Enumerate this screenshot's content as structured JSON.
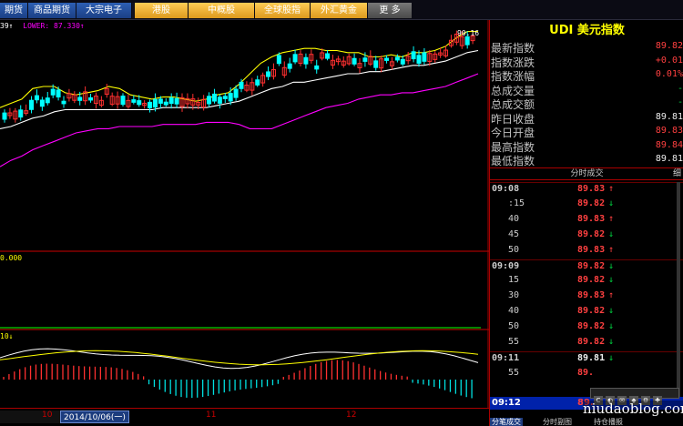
{
  "topbar": {
    "tabs": [
      {
        "label": "期货",
        "style": "blue"
      },
      {
        "label": "商品期货",
        "style": "blue"
      },
      {
        "label": "大宗电子",
        "style": "blue"
      },
      {
        "label": "港股",
        "style": "gold"
      },
      {
        "label": "中概股",
        "style": "gold"
      },
      {
        "label": "全球股指",
        "style": "gold"
      },
      {
        "label": "外汇黄金",
        "style": "gold"
      },
      {
        "label": "更 多",
        "style": "grey"
      }
    ]
  },
  "chart": {
    "ma_legend": {
      "mid": "39↑",
      "lower": "LOWER: 87.330↑"
    },
    "peak_label": "90.16",
    "volume_label": "0.000",
    "macd_label": "10↓",
    "time_ticks": [
      "10",
      "11",
      "12"
    ],
    "date_box": "2014/10/06(一)",
    "colors": {
      "up": "#ff3030",
      "down": "#00ffff",
      "upper_band": "#ffff00",
      "mid_band": "#ffffff",
      "lower_band": "#ff00ff",
      "grid": "#8b0000"
    }
  },
  "chart_data": {
    "type": "line",
    "title": "",
    "xlabel": "",
    "ylabel": "",
    "note": "Candlestick with Bollinger bands (upper yellow, mid white, lower magenta)",
    "series": [
      {
        "values": [
          0.62,
          0.64,
          0.66,
          0.71,
          0.72,
          0.72,
          0.69,
          0.68,
          0.69,
          0.7,
          0.72,
          0.71,
          0.68,
          0.67,
          0.66,
          0.67,
          0.67,
          0.66,
          0.65,
          0.66,
          0.68,
          0.69,
          0.73,
          0.78,
          0.83,
          0.86,
          0.88,
          0.89,
          0.9,
          0.9,
          0.89,
          0.89,
          0.88,
          0.88,
          0.86,
          0.86,
          0.87,
          0.86,
          0.88,
          0.88,
          0.89,
          0.91,
          0.95,
          0.98,
          0.98
        ]
      },
      {
        "values": [
          0.52,
          0.53,
          0.55,
          0.57,
          0.58,
          0.6,
          0.61,
          0.61,
          0.61,
          0.61,
          0.61,
          0.61,
          0.61,
          0.61,
          0.61,
          0.62,
          0.62,
          0.62,
          0.62,
          0.62,
          0.63,
          0.64,
          0.65,
          0.67,
          0.69,
          0.71,
          0.72,
          0.74,
          0.74,
          0.75,
          0.76,
          0.77,
          0.78,
          0.78,
          0.79,
          0.79,
          0.8,
          0.81,
          0.82,
          0.82,
          0.83,
          0.84,
          0.86,
          0.88,
          0.89
        ]
      },
      {
        "values": [
          0.34,
          0.37,
          0.39,
          0.42,
          0.44,
          0.46,
          0.48,
          0.5,
          0.51,
          0.52,
          0.52,
          0.53,
          0.53,
          0.53,
          0.53,
          0.54,
          0.54,
          0.54,
          0.54,
          0.55,
          0.55,
          0.55,
          0.54,
          0.52,
          0.52,
          0.52,
          0.54,
          0.56,
          0.58,
          0.6,
          0.62,
          0.63,
          0.64,
          0.66,
          0.67,
          0.68,
          0.68,
          0.69,
          0.69,
          0.7,
          0.71,
          0.72,
          0.74,
          0.76,
          0.78
        ]
      }
    ]
  },
  "quote": {
    "title": "UDI 美元指数",
    "stats": [
      {
        "label": "最新指数",
        "value": "89.82",
        "color": "red"
      },
      {
        "label": "指数涨跌",
        "value": "+0.01",
        "color": "red"
      },
      {
        "label": "指数涨幅",
        "value": "0.01%",
        "color": "red"
      },
      {
        "label": "总成交量",
        "value": "-",
        "color": "green"
      },
      {
        "label": "总成交额",
        "value": "-",
        "color": "green"
      },
      {
        "label": "昨日收盘",
        "value": "89.81",
        "color": "white"
      },
      {
        "label": "今日开盘",
        "value": "89.83",
        "color": "red"
      },
      {
        "label": "最高指数",
        "value": "89.84",
        "color": "red"
      },
      {
        "label": "最低指数",
        "value": "89.81",
        "color": "white"
      }
    ],
    "trades_header": "分时成交",
    "trades_header_right": "细",
    "trades": [
      {
        "time": "09:08",
        "price": "89.83",
        "dir": "↑",
        "major": true
      },
      {
        "time": ":15",
        "price": "89.82",
        "dir": "↓",
        "major": false
      },
      {
        "time": "40",
        "price": "89.83",
        "dir": "↑",
        "major": false
      },
      {
        "time": "45",
        "price": "89.82",
        "dir": "↓",
        "major": false
      },
      {
        "time": "50",
        "price": "89.83",
        "dir": "↑",
        "major": false
      },
      {
        "time": "09:09",
        "price": "89.82",
        "dir": "↓",
        "major": true
      },
      {
        "time": "15",
        "price": "89.82",
        "dir": "↓",
        "major": false
      },
      {
        "time": "30",
        "price": "89.83",
        "dir": "↑",
        "major": false
      },
      {
        "time": "40",
        "price": "89.82",
        "dir": "↓",
        "major": false
      },
      {
        "time": "50",
        "price": "89.82",
        "dir": "↓",
        "major": false
      },
      {
        "time": "55",
        "price": "89.82",
        "dir": "↓",
        "major": false
      },
      {
        "time": "09:11",
        "price": "89.81",
        "dir": "↓",
        "major": true
      },
      {
        "time": "55",
        "price": "89.",
        "dir": "",
        "major": false
      }
    ],
    "active_time": "09:12",
    "active_price": "89.",
    "bottom_tabs": [
      "分笔成交",
      "分时副图",
      "持仓播报"
    ]
  },
  "watermark": "niudaoblog.com"
}
